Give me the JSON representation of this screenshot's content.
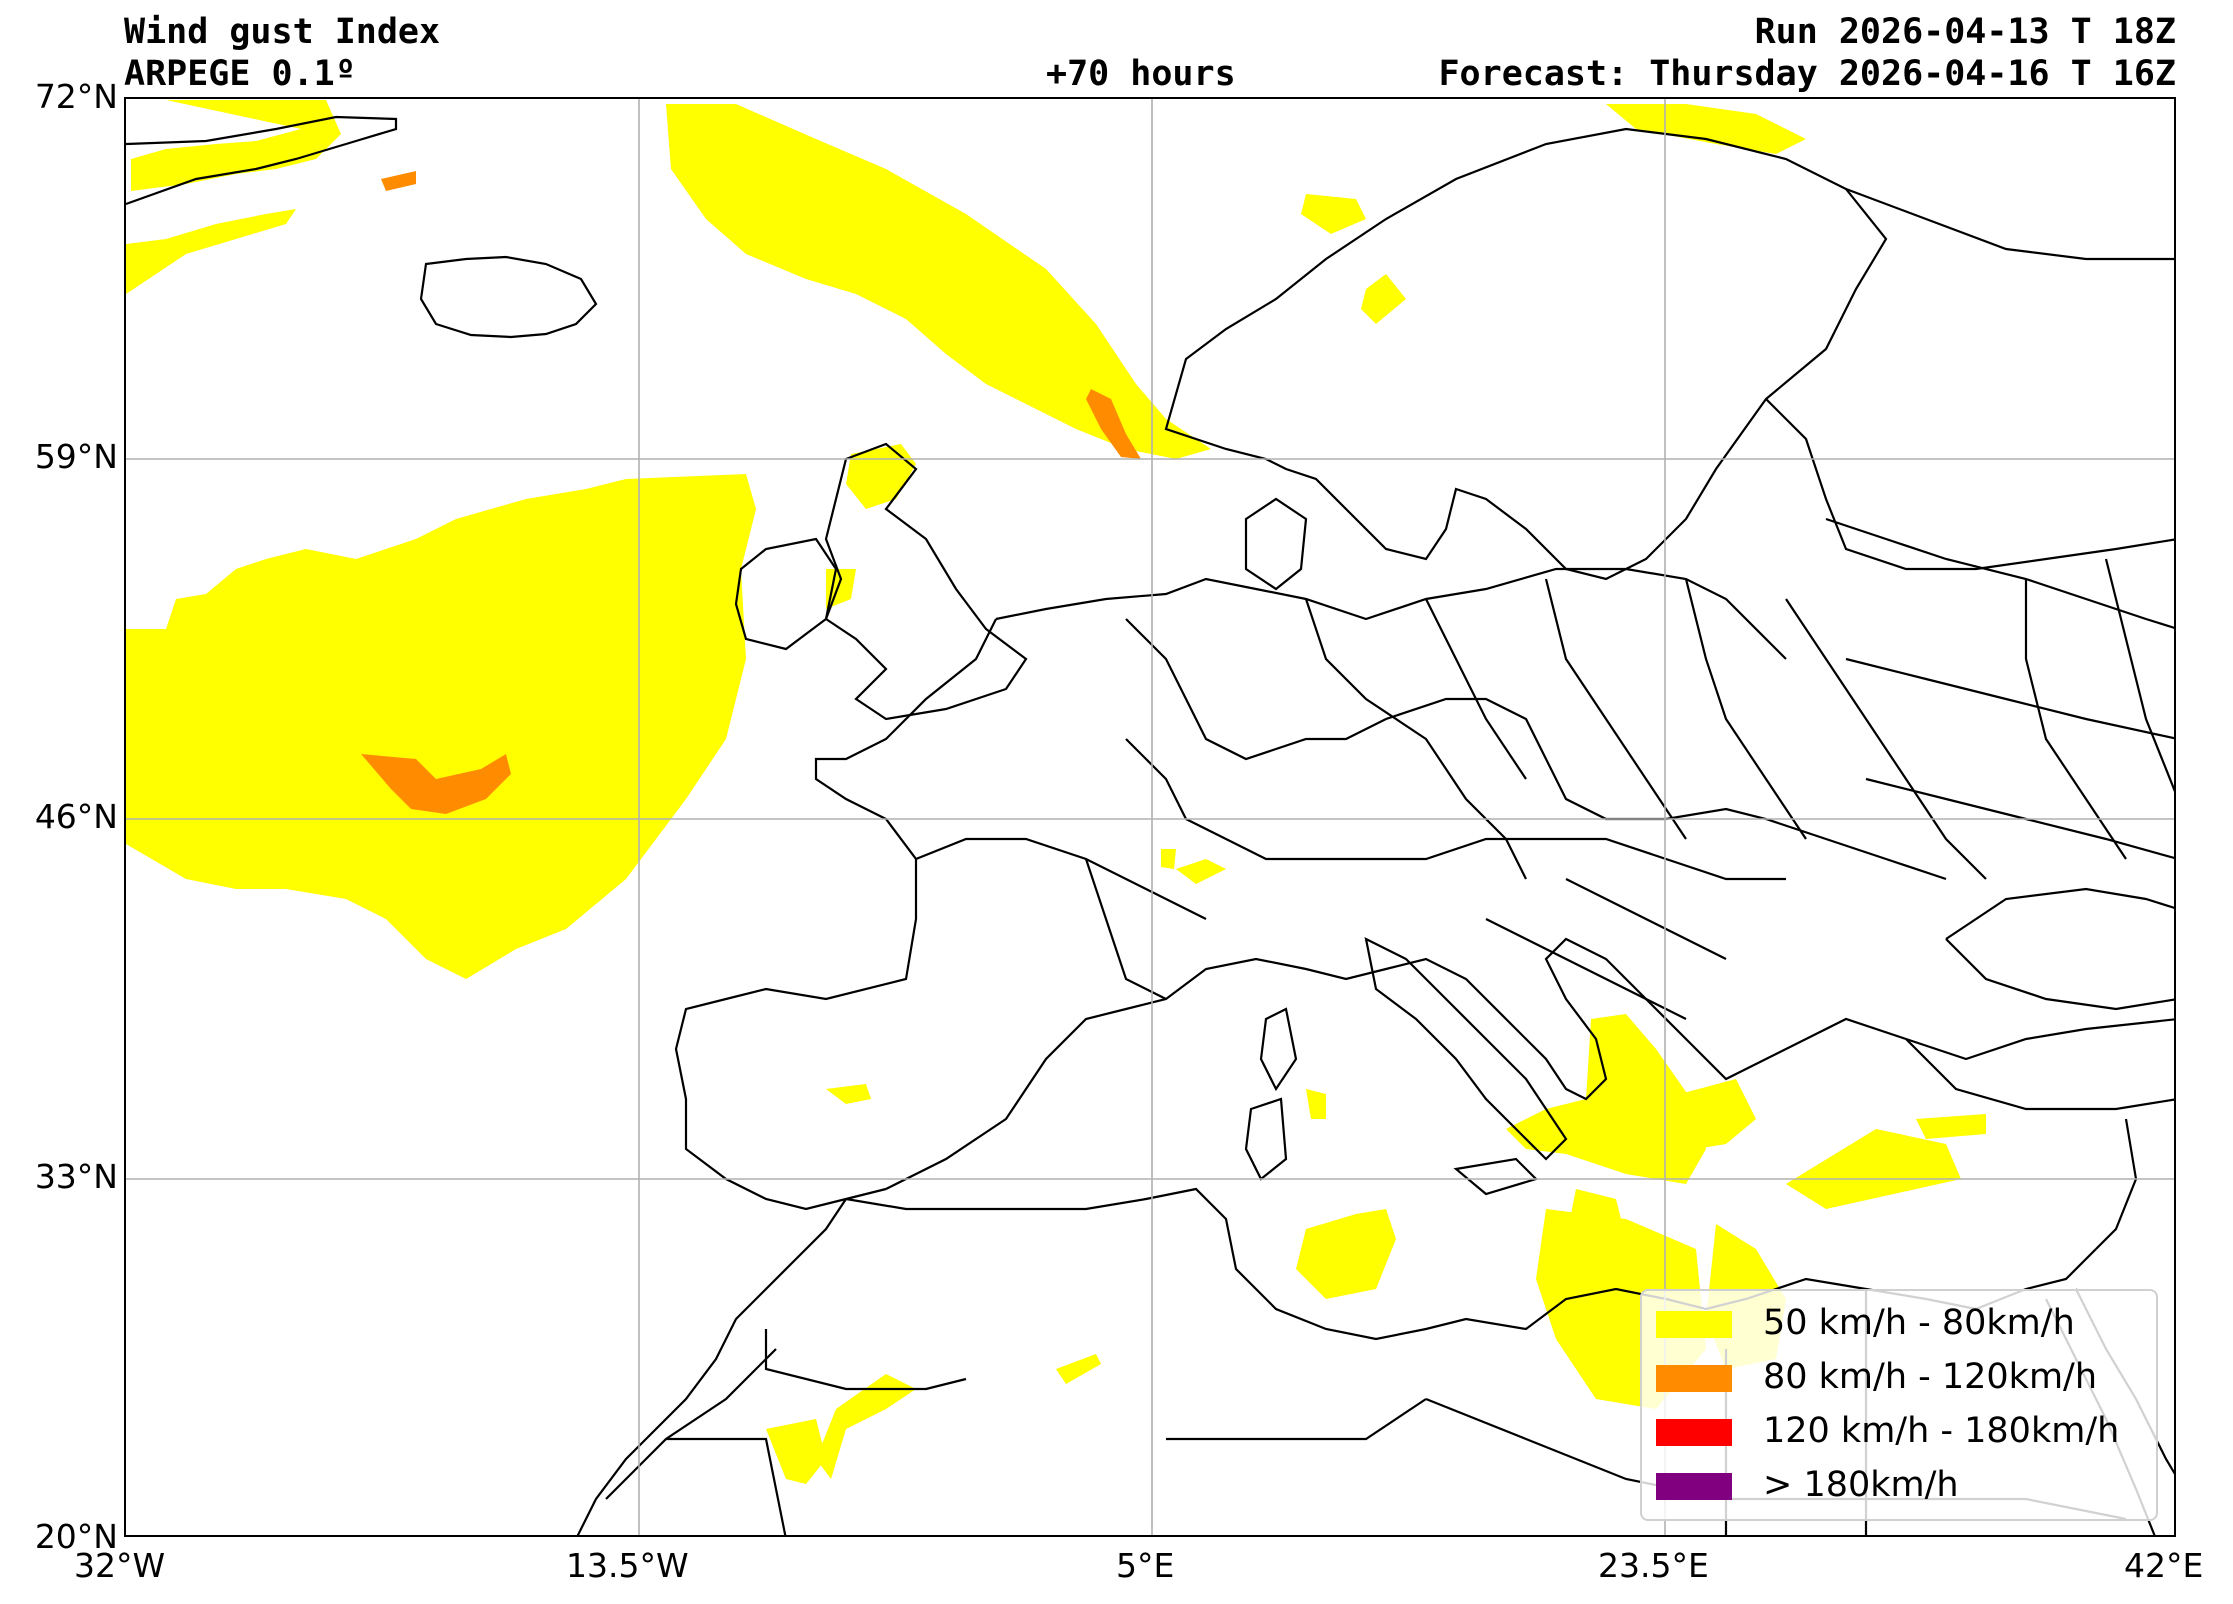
{
  "header": {
    "title": "Wind gust Index",
    "model": "ARPEGE 0.1º",
    "lead_time": "+70 hours",
    "run": "Run 2026-04-13 T 18Z",
    "forecast": "Forecast: Thursday 2026-04-16 T 16Z"
  },
  "axes": {
    "lat_ticks": [
      "72°N",
      "59°N",
      "46°N",
      "33°N",
      "20°N"
    ],
    "lon_ticks": [
      "32°W",
      "13.5°W",
      "5°E",
      "23.5°E",
      "42°E"
    ],
    "lat_range": [
      20,
      72
    ],
    "lon_range": [
      -32,
      42
    ],
    "grid": true
  },
  "legend": {
    "placement": "lower-right",
    "items": [
      {
        "label": "50 km/h - 80km/h",
        "color": "#ffff00"
      },
      {
        "label": "80 km/h - 120km/h",
        "color": "#ff8c00"
      },
      {
        "label": "120 km/h - 180km/h",
        "color": "#ff0000"
      },
      {
        "label": "> 180km/h",
        "color": "#800080"
      }
    ]
  },
  "colors": {
    "gust_50_80": "#ffff00",
    "gust_80_120": "#ff8c00",
    "coast": "#000000",
    "grid": "#b0b0b0"
  }
}
